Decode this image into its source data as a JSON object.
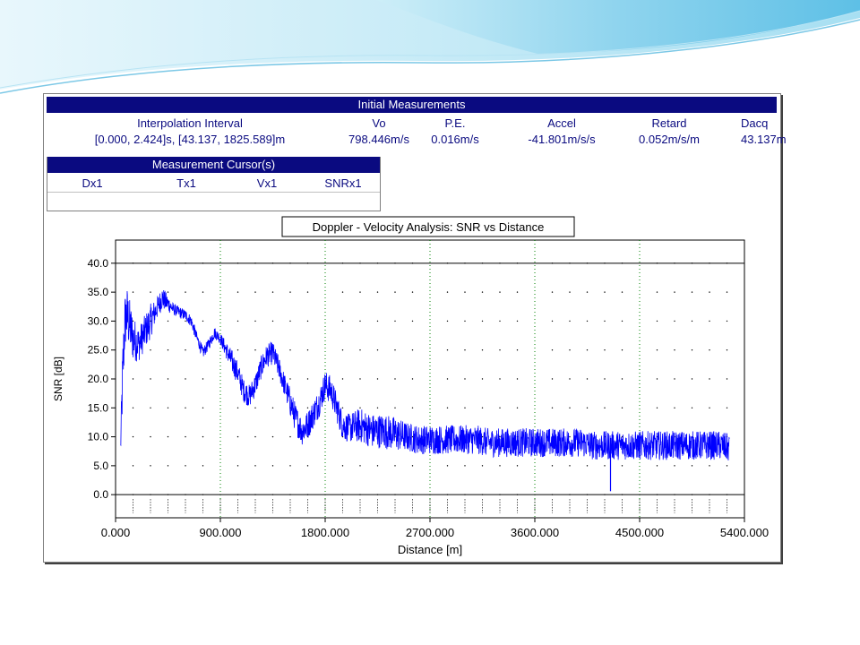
{
  "initial_measurements": {
    "title": "Initial Measurements",
    "headers": [
      "Interpolation Interval",
      "Vo",
      "P.E.",
      "Accel",
      "Retard",
      "Dacq"
    ],
    "values": [
      "[0.000, 2.424]s, [43.137, 1825.589]m",
      "798.446m/s",
      "0.016m/s",
      "-41.801m/s/s",
      "0.052m/s/m",
      "43.137m"
    ]
  },
  "measurement_cursors": {
    "title": "Measurement Cursor(s)",
    "headers": [
      "Dx1",
      "Tx1",
      "Vx1",
      "SNRx1"
    ]
  },
  "colors": {
    "header_bg": "#0a0a80",
    "header_text": "#ffffff",
    "table_text": "#0a0a80",
    "series": "#0000ff",
    "grid": "#008000"
  },
  "chart_data": {
    "type": "line",
    "title": "Doppler - Velocity Analysis: SNR vs Distance",
    "xlabel": "Distance [m]",
    "ylabel": "SNR [dB]",
    "xlim": [
      0,
      5400
    ],
    "ylim": [
      -4,
      44
    ],
    "x_ticks": [
      "0.000",
      "900.000",
      "1800.000",
      "2700.000",
      "3600.000",
      "4500.000",
      "5400.000"
    ],
    "y_ticks": [
      "0.0",
      "5.0",
      "10.0",
      "15.0",
      "20.0",
      "25.0",
      "30.0",
      "35.0",
      "40.0"
    ],
    "grid": true,
    "series": [
      {
        "x": [
          43,
          60,
          80,
          100,
          150,
          200,
          250,
          300,
          350,
          400,
          450,
          500,
          550,
          600,
          650,
          700,
          750,
          800,
          850,
          900,
          950,
          1000,
          1050,
          1100,
          1150,
          1200,
          1250,
          1300,
          1350,
          1400,
          1450,
          1500,
          1550,
          1600,
          1650,
          1700,
          1750,
          1800,
          1850,
          1900,
          1950,
          2000,
          2100,
          2200,
          2300,
          2400,
          2500,
          2600,
          2700,
          2800,
          2900,
          3000,
          3100,
          3200,
          3300,
          3400,
          3500,
          3600,
          3700,
          3800,
          3900,
          4000,
          4100,
          4200,
          4250,
          4300,
          4400,
          4500,
          4600,
          4700,
          4800,
          4900,
          5000,
          5100,
          5200,
          5270
        ],
        "y": [
          8,
          20,
          30,
          31,
          27,
          26,
          28,
          30,
          32,
          34,
          33,
          32,
          31.5,
          31,
          30,
          27,
          24.5,
          26,
          28,
          27,
          25,
          23,
          21,
          18,
          17,
          19,
          22,
          24,
          24.5,
          22,
          19,
          16,
          13,
          11,
          12,
          14,
          16,
          19,
          18,
          15,
          12,
          11.5,
          12,
          11,
          11,
          10.5,
          10,
          9.5,
          9.5,
          9.5,
          9.5,
          9.5,
          9.5,
          9,
          9,
          9,
          9,
          9,
          9,
          9,
          9,
          9,
          8.5,
          8.5,
          8.5,
          8.5,
          8.5,
          8.5,
          8.5,
          8.5,
          8.5,
          8.5,
          8.5,
          8.5,
          8.5,
          8
        ],
        "noise": [
          2,
          6,
          5,
          5,
          4,
          3,
          3,
          3,
          2,
          2,
          1.5,
          1,
          1,
          1,
          1,
          1,
          1,
          1,
          1,
          1,
          1.5,
          2,
          2,
          2,
          2,
          2,
          2,
          2,
          2,
          2,
          2,
          2.5,
          2.5,
          2.5,
          2.5,
          2.5,
          2.5,
          2.5,
          2.5,
          2.5,
          2.5,
          2.5,
          3,
          3,
          3,
          3,
          2.5,
          2.5,
          2.5,
          2.5,
          2.5,
          2.5,
          2.5,
          2.5,
          2.5,
          2.5,
          2.5,
          2.5,
          2.5,
          2.5,
          2.5,
          2.5,
          2.5,
          2.5,
          2.5,
          2.5,
          2.5,
          2.5,
          2.5,
          2.5,
          2.5,
          2.5,
          2.5,
          2.5,
          2.5,
          2.5
        ]
      }
    ],
    "spikes": [
      {
        "x": 4250,
        "y": 0.6
      }
    ]
  }
}
